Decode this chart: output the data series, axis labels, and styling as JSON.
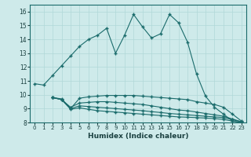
{
  "xlabel": "Humidex (Indice chaleur)",
  "xlim": [
    -0.5,
    23.5
  ],
  "ylim": [
    8,
    16.5
  ],
  "xticks": [
    0,
    1,
    2,
    3,
    4,
    5,
    6,
    7,
    8,
    9,
    10,
    11,
    12,
    13,
    14,
    15,
    16,
    17,
    18,
    19,
    20,
    21,
    22,
    23
  ],
  "yticks": [
    8,
    9,
    10,
    11,
    12,
    13,
    14,
    15,
    16
  ],
  "bg_color": "#ceeaea",
  "line_color": "#1a6b6b",
  "grid_color": "#b0d8d8",
  "lines": [
    {
      "x": [
        0,
        1,
        2,
        3,
        4,
        5,
        6,
        7,
        8,
        9,
        10,
        11,
        12,
        13,
        14,
        15,
        16,
        17,
        18,
        19,
        20,
        21,
        22,
        23
      ],
      "y": [
        10.8,
        10.7,
        11.4,
        12.1,
        12.8,
        13.5,
        14.0,
        14.3,
        14.8,
        13.0,
        14.3,
        15.8,
        14.9,
        14.1,
        14.4,
        15.8,
        15.2,
        13.8,
        11.5,
        9.9,
        9.1,
        8.6,
        8.1,
        8.0
      ]
    },
    {
      "x": [
        2,
        3,
        4,
        5,
        6,
        7,
        8,
        9,
        10,
        11,
        12,
        13,
        14,
        15,
        16,
        17,
        18,
        19,
        20,
        21,
        22,
        23
      ],
      "y": [
        9.8,
        9.7,
        9.0,
        9.75,
        9.85,
        9.9,
        9.95,
        9.95,
        9.95,
        9.95,
        9.9,
        9.85,
        9.8,
        9.75,
        9.7,
        9.65,
        9.5,
        9.4,
        9.3,
        9.1,
        8.6,
        8.1
      ]
    },
    {
      "x": [
        2,
        3,
        4,
        5,
        6,
        7,
        8,
        9,
        10,
        11,
        12,
        13,
        14,
        15,
        16,
        17,
        18,
        19,
        20,
        21,
        22,
        23
      ],
      "y": [
        9.8,
        9.65,
        9.1,
        9.4,
        9.45,
        9.5,
        9.5,
        9.45,
        9.4,
        9.35,
        9.3,
        9.2,
        9.1,
        9.0,
        8.9,
        8.85,
        8.75,
        8.65,
        8.55,
        8.45,
        8.25,
        8.05
      ]
    },
    {
      "x": [
        2,
        3,
        4,
        5,
        6,
        7,
        8,
        9,
        10,
        11,
        12,
        13,
        14,
        15,
        16,
        17,
        18,
        19,
        20,
        21,
        22,
        23
      ],
      "y": [
        9.8,
        9.65,
        9.0,
        9.2,
        9.15,
        9.1,
        9.05,
        9.0,
        8.95,
        8.9,
        8.85,
        8.78,
        8.72,
        8.65,
        8.6,
        8.55,
        8.5,
        8.45,
        8.4,
        8.35,
        8.2,
        8.05
      ]
    },
    {
      "x": [
        2,
        3,
        4,
        5,
        6,
        7,
        8,
        9,
        10,
        11,
        12,
        13,
        14,
        15,
        16,
        17,
        18,
        19,
        20,
        21,
        22,
        23
      ],
      "y": [
        9.8,
        9.65,
        8.95,
        9.05,
        8.95,
        8.85,
        8.8,
        8.75,
        8.7,
        8.65,
        8.6,
        8.55,
        8.5,
        8.45,
        8.4,
        8.38,
        8.35,
        8.32,
        8.28,
        8.22,
        8.1,
        8.0
      ]
    }
  ]
}
